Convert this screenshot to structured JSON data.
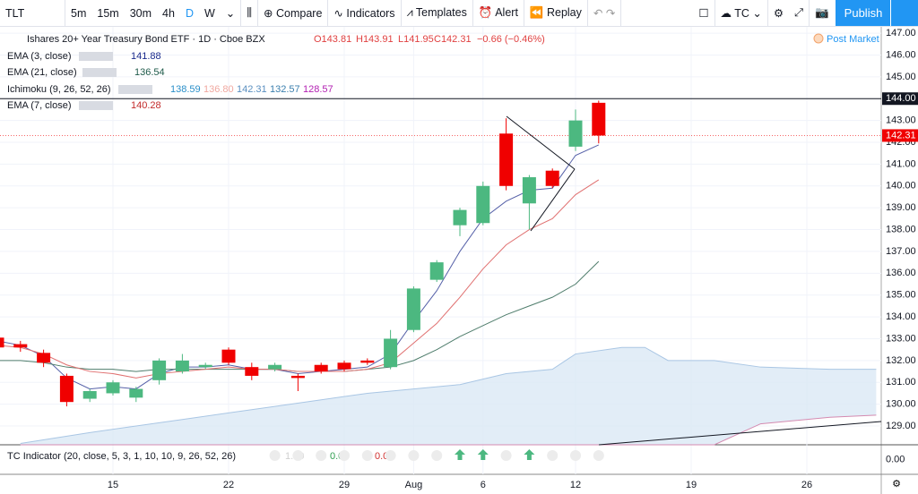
{
  "toolbar": {
    "symbol": "TLT",
    "intervals": [
      "5m",
      "15m",
      "30m",
      "4h",
      "D",
      "W"
    ],
    "buttons": [
      "Compare",
      "Indicators",
      "Templates",
      "Alert",
      "Replay"
    ],
    "layout": "TC",
    "publish": "Publish"
  },
  "legend": {
    "symbol": "Ishares 20+ Year Treasury Bond ETF · 1D · Cboe BZX",
    "ohlc": [
      "O143.81",
      "H143.91",
      "L141.95",
      "C142.31",
      "−0.66 (−0.46%)"
    ],
    "session": "Post Market"
  },
  "studies": [
    {
      "name": "EMA (3, close)",
      "values": [
        "141.88"
      ],
      "colors": [
        "#1a2a8c"
      ],
      "line_color": "#5560a8",
      "line": [
        132.9,
        132.7,
        132.2,
        131.2,
        130.7,
        130.8,
        130.7,
        131.4,
        131.7,
        131.7,
        131.8,
        131.6,
        131.6,
        131.4,
        131.5,
        131.6,
        131.7,
        132.3,
        133.8,
        135.2,
        137.0,
        138.5,
        139.3,
        139.8,
        139.9,
        141.4,
        141.88
      ]
    },
    {
      "name": "EMA (21, close)",
      "values": [
        "136.54"
      ],
      "colors": [
        "#1e5a4a"
      ],
      "line_color": "#4f7d6c",
      "line": [
        132.0,
        132.0,
        131.9,
        131.7,
        131.6,
        131.6,
        131.5,
        131.6,
        131.6,
        131.6,
        131.6,
        131.6,
        131.6,
        131.5,
        131.5,
        131.5,
        131.6,
        131.7,
        132.0,
        132.5,
        133.1,
        133.6,
        134.1,
        134.5,
        134.9,
        135.5,
        136.54
      ]
    },
    {
      "name": "Ichimoku (9, 26, 52, 26)",
      "values": [
        "138.59",
        "136.80",
        "142.31",
        "132.57",
        "128.57"
      ],
      "colors": [
        "#2a8fc9",
        "#f0a8a0",
        "#5a8fc0",
        "#3b7fae",
        "#b21fb2"
      ]
    },
    {
      "name": "EMA (7, close)",
      "values": [
        "140.28"
      ],
      "colors": [
        "#c22a2a"
      ],
      "line_color": "#e07070",
      "line": [
        132.7,
        132.6,
        132.3,
        131.8,
        131.5,
        131.4,
        131.2,
        131.4,
        131.5,
        131.6,
        131.7,
        131.6,
        131.6,
        131.5,
        131.5,
        131.5,
        131.6,
        131.9,
        132.8,
        133.7,
        134.9,
        136.2,
        137.3,
        138.0,
        138.5,
        139.6,
        140.28
      ]
    }
  ],
  "chart": {
    "ylim": [
      128.14,
      147.29
    ],
    "yticks": [
      {
        "value": 129,
        "label": "129.00"
      },
      {
        "value": 130,
        "label": "130.00"
      },
      {
        "value": 131,
        "label": "131.00"
      },
      {
        "value": 132,
        "label": "132.00"
      },
      {
        "value": 133,
        "label": "133.00"
      },
      {
        "value": 134,
        "label": "134.00"
      },
      {
        "value": 135,
        "label": "135.00"
      },
      {
        "value": 136,
        "label": "136.00"
      },
      {
        "value": 137,
        "label": "137.00"
      },
      {
        "value": 138,
        "label": "138.00"
      },
      {
        "value": 139,
        "label": "139.00"
      },
      {
        "value": 140,
        "label": "140.00"
      },
      {
        "value": 141,
        "label": "141.00"
      },
      {
        "value": 142,
        "label": "142.00"
      },
      {
        "value": 143,
        "label": "143.00"
      },
      {
        "value": 144,
        "label": "144.00"
      },
      {
        "value": 145,
        "label": "145.00"
      },
      {
        "value": 146,
        "label": "146.00"
      },
      {
        "value": 147,
        "label": "147.00"
      }
    ],
    "markers": [
      {
        "value": 144,
        "label": "144.00",
        "color": "#131722"
      },
      {
        "value": 142.31,
        "label": "142.31",
        "color": "#f00000"
      }
    ],
    "bar_labels": [
      {
        "bar": 5,
        "label": "15"
      },
      {
        "bar": 10,
        "label": "22"
      },
      {
        "bar": 15,
        "label": "29"
      },
      {
        "bar": 18,
        "label": "Aug"
      },
      {
        "bar": 21,
        "label": "6"
      },
      {
        "bar": 25,
        "label": "12"
      },
      {
        "bar": 30,
        "label": "19"
      },
      {
        "bar": 35,
        "label": "26"
      }
    ],
    "up_color": "#4cb880",
    "down_color": "#f00000",
    "candles": [
      {
        "o": 133.05,
        "h": 133.2,
        "l": 132.5,
        "c": 132.6
      },
      {
        "o": 132.75,
        "h": 132.9,
        "l": 132.4,
        "c": 132.6
      },
      {
        "o": 132.35,
        "h": 132.5,
        "l": 131.7,
        "c": 131.9
      },
      {
        "o": 131.3,
        "h": 131.4,
        "l": 129.9,
        "c": 130.1
      },
      {
        "o": 130.25,
        "h": 130.7,
        "l": 130.1,
        "c": 130.6
      },
      {
        "o": 130.5,
        "h": 131.1,
        "l": 130.4,
        "c": 131.0
      },
      {
        "o": 130.3,
        "h": 130.8,
        "l": 130.1,
        "c": 130.7
      },
      {
        "o": 131.1,
        "h": 132.1,
        "l": 130.9,
        "c": 132.0
      },
      {
        "o": 131.5,
        "h": 132.3,
        "l": 131.4,
        "c": 132.0
      },
      {
        "o": 131.7,
        "h": 131.9,
        "l": 131.6,
        "c": 131.8
      },
      {
        "o": 132.5,
        "h": 132.6,
        "l": 131.8,
        "c": 131.9
      },
      {
        "o": 131.7,
        "h": 131.9,
        "l": 131.1,
        "c": 131.3
      },
      {
        "o": 131.6,
        "h": 131.9,
        "l": 131.5,
        "c": 131.8
      },
      {
        "o": 131.3,
        "h": 131.4,
        "l": 130.6,
        "c": 131.2
      },
      {
        "o": 131.8,
        "h": 131.9,
        "l": 131.4,
        "c": 131.5
      },
      {
        "o": 131.9,
        "h": 132.0,
        "l": 131.5,
        "c": 131.6
      },
      {
        "o": 132.0,
        "h": 132.1,
        "l": 131.8,
        "c": 131.9
      },
      {
        "o": 131.7,
        "h": 133.4,
        "l": 131.6,
        "c": 133.0
      },
      {
        "o": 133.4,
        "h": 135.4,
        "l": 133.3,
        "c": 135.3
      },
      {
        "o": 135.7,
        "h": 136.6,
        "l": 135.6,
        "c": 136.5
      },
      {
        "o": 138.2,
        "h": 139.0,
        "l": 137.7,
        "c": 138.9
      },
      {
        "o": 138.3,
        "h": 140.2,
        "l": 138.2,
        "c": 140.0
      },
      {
        "o": 142.4,
        "h": 143.1,
        "l": 139.8,
        "c": 140.0
      },
      {
        "o": 139.2,
        "h": 140.5,
        "l": 138.0,
        "c": 140.4
      },
      {
        "o": 140.7,
        "h": 140.8,
        "l": 139.9,
        "c": 140.0
      },
      {
        "o": 141.8,
        "h": 143.5,
        "l": 141.6,
        "c": 143.0
      },
      {
        "o": 143.81,
        "h": 143.91,
        "l": 141.95,
        "c": 142.31
      }
    ],
    "cloud": {
      "fill": "#dbe8f5",
      "edge": "#a9c6e4",
      "lower_color": "#d48ab0",
      "bars": [
        1,
        4,
        8,
        12,
        16,
        18,
        20,
        22,
        24,
        25,
        27,
        28,
        29,
        31,
        33,
        36,
        38
      ],
      "upper": [
        128.2,
        128.7,
        129.3,
        129.9,
        130.5,
        130.7,
        130.9,
        131.4,
        131.6,
        132.3,
        132.6,
        132.6,
        132.0,
        132.0,
        131.7,
        131.6,
        131.6
      ],
      "lower": [
        128.14,
        128.14,
        128.14,
        128.14,
        128.14,
        128.14,
        128.14,
        128.14,
        128.14,
        128.14,
        128.14,
        128.14,
        128.14,
        128.14,
        129.1,
        129.4,
        129.5
      ]
    }
  },
  "indicator": {
    "name": "TC Indicator (20, close, 5, 3, 1, 10, 10, 9, 26, 52, 26)",
    "values": [
      "1.00",
      "0.00",
      "0.00"
    ],
    "colors": [
      "#d0d0d0",
      "#2e9e4f",
      "#d0302f"
    ],
    "ylim": [
      -1,
      1
    ],
    "tick": {
      "value": 0,
      "label": "0.00"
    },
    "up_arrows": [
      20,
      21,
      23
    ],
    "dots": [
      12,
      13,
      14,
      15,
      16,
      17,
      18,
      19,
      22,
      24,
      25,
      26
    ]
  }
}
